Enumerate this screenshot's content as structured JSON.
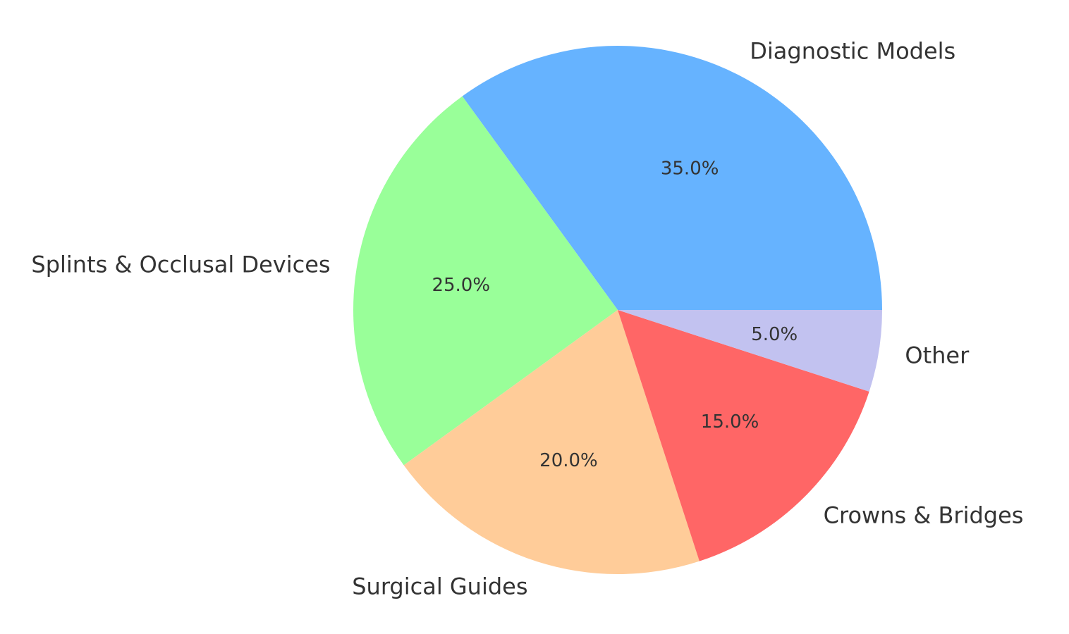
{
  "chart_data": {
    "type": "pie",
    "categories": [
      "Diagnostic Models",
      "Splints & Occlusal Devices",
      "Surgical Guides",
      "Crowns & Bridges",
      "Other"
    ],
    "values": [
      35.0,
      25.0,
      20.0,
      15.0,
      5.0
    ],
    "value_labels": [
      "35.0%",
      "25.0%",
      "20.0%",
      "15.0%",
      "5.0%"
    ],
    "colors": [
      "#66b3ff",
      "#99ff99",
      "#ffcc99",
      "#ff6666",
      "#c2c2f0"
    ],
    "start_angle_deg": 0,
    "direction": "counterclockwise",
    "legend": "none"
  }
}
